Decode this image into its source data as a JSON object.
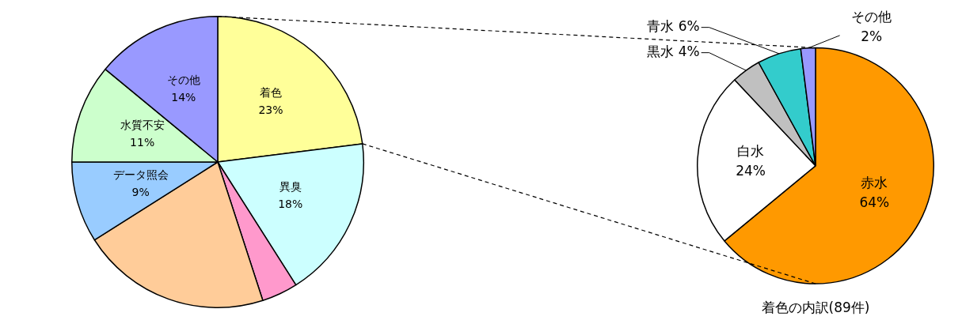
{
  "chart_data": [
    {
      "type": "pie",
      "categories": [
        "着色",
        "異臭",
        null,
        null,
        "データ照会",
        "水質不安",
        "その他"
      ],
      "values": [
        23,
        18,
        4,
        21,
        9,
        11,
        14
      ],
      "colors": [
        "#ffff99",
        "#ccffff",
        "#ff99cc",
        "#ffcc99",
        "#99ccff",
        "#ccffcc",
        "#9999ff"
      ],
      "value_labels": [
        "23%",
        "18%",
        null,
        null,
        "9%",
        "11%",
        "14%"
      ]
    },
    {
      "type": "pie",
      "title": "着色の内訳(89件)",
      "categories": [
        "赤水",
        "白水",
        "黒水",
        "青水",
        "その他"
      ],
      "values": [
        64,
        24,
        4,
        6,
        2
      ],
      "colors": [
        "#ff9900",
        "#ffffff",
        "#c0c0c0",
        "#33cccc",
        "#9999ff"
      ],
      "value_labels": [
        "64%",
        "24%",
        "4%",
        "6%",
        "2%"
      ]
    }
  ]
}
